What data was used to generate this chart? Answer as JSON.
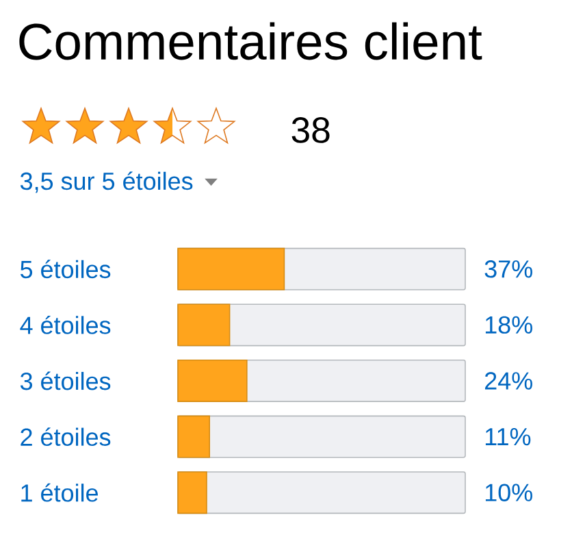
{
  "chart_data": {
    "type": "bar",
    "orientation": "horizontal",
    "title": "Commentaires client",
    "subtitle": "3,5 sur 5 étoiles",
    "annotations": [
      "38"
    ],
    "categories": [
      "5 étoiles",
      "4 étoiles",
      "3 étoiles",
      "2 étoiles",
      "1 étoile"
    ],
    "values": [
      37,
      18,
      24,
      11,
      10
    ],
    "value_labels": [
      "37%",
      "18%",
      "24%",
      "11%",
      "10%"
    ],
    "color": "#ffa41c",
    "xlim": [
      0,
      100
    ],
    "tick_labels": "y"
  }
}
